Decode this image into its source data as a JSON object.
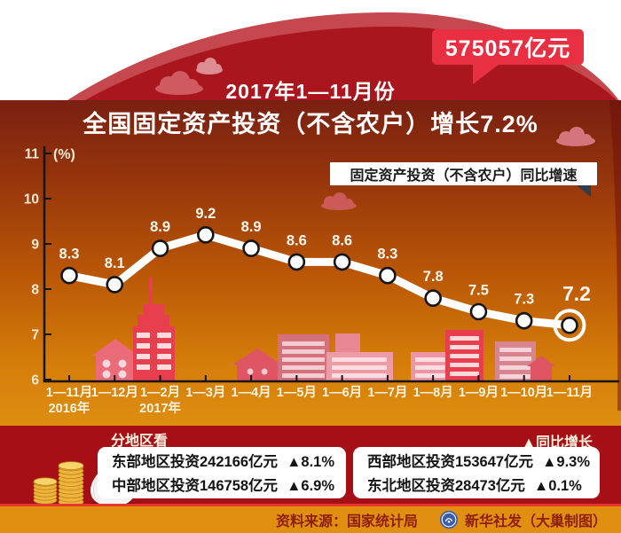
{
  "badge": {
    "label": "575057亿元"
  },
  "title": {
    "line1": "2017年1—11月份",
    "line2": "全国固定资产投资（不含农户）增长7.2%"
  },
  "chart_data": {
    "type": "line",
    "title": "2017年1—11月份全国固定资产投资（不含农户）增长7.2%",
    "legend": "固定资产投资（不含农户）同比增速",
    "ylabel": "(%)",
    "categories": [
      "1—11月",
      "1—12月",
      "1—2月",
      "1—3月",
      "1—4月",
      "1—5月",
      "1—6月",
      "1—7月",
      "1—8月",
      "1—9月",
      "1—10月",
      "1—11月"
    ],
    "sub_labels": [
      {
        "i": 0,
        "label": "2016年"
      },
      {
        "i": 2,
        "label": "2017年"
      }
    ],
    "values": [
      8.3,
      8.1,
      8.9,
      9.2,
      8.9,
      8.6,
      8.6,
      8.3,
      7.8,
      7.5,
      7.3,
      7.2
    ],
    "ylim": [
      6,
      11
    ],
    "y_ticks": [
      6,
      7,
      8,
      9,
      10,
      11
    ],
    "grid": "off",
    "legend_position": "top-right",
    "highlight_last": true
  },
  "regions": {
    "heading": "分地区看",
    "yoy_label": "▲同比增长",
    "left_box": {
      "rows": [
        {
          "label": "东部地区投资242166亿元",
          "delta": "▲8.1%"
        },
        {
          "label": "中部地区投资146758亿元",
          "delta": "▲6.9%"
        }
      ]
    },
    "right_box": {
      "rows": [
        {
          "label": "西部地区投资153647亿元",
          "delta": "▲9.3%"
        },
        {
          "label": "东北地区投资28473亿元",
          "delta": "▲0.1%"
        }
      ]
    }
  },
  "footer": {
    "source": "资料来源：国家统计局",
    "credit": "新华社发（大巢制图）"
  },
  "colors": {
    "badge_red": "#e93043",
    "arch_red": "#a9161e",
    "section_red": "#a60f15",
    "footer_orange": "#e18f10",
    "line_color": "#ffffff",
    "label_cream": "#f6ead0"
  }
}
